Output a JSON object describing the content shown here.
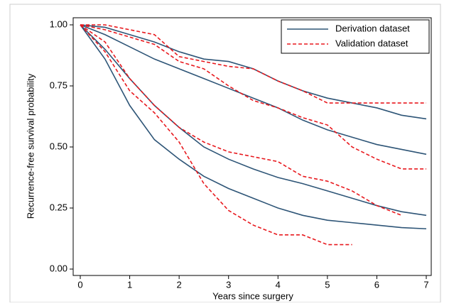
{
  "chart_data": {
    "type": "line",
    "xlabel": "Years since surgery",
    "ylabel": "Recurrence-free survival probability",
    "x": [
      0,
      0.5,
      1,
      1.5,
      2,
      2.5,
      3,
      3.5,
      4,
      4.5,
      5,
      5.5,
      6,
      6.5,
      7
    ],
    "xlim": [
      0,
      7
    ],
    "xticks": [
      0,
      1,
      2,
      3,
      4,
      5,
      6,
      7
    ],
    "ylim": [
      0,
      1
    ],
    "yticks": [
      {
        "value": 0,
        "label": "0.00"
      },
      {
        "value": 0.25,
        "label": "0.25"
      },
      {
        "value": 0.5,
        "label": "0.50"
      },
      {
        "value": 0.75,
        "label": "0.75"
      },
      {
        "value": 1,
        "label": "1.00"
      }
    ],
    "legend": "upper right",
    "series": [
      {
        "name": "Derivation dataset",
        "color": "#2e5577",
        "line_style": "solid",
        "curves": [
          [
            1,
            0.99,
            0.96,
            0.93,
            0.89,
            0.86,
            0.85,
            0.82,
            0.77,
            0.73,
            0.7,
            0.68,
            0.66,
            0.63,
            0.615
          ],
          [
            1,
            0.96,
            0.91,
            0.86,
            0.82,
            0.78,
            0.74,
            0.7,
            0.66,
            0.61,
            0.57,
            0.54,
            0.51,
            0.49,
            0.47
          ],
          [
            1,
            0.9,
            0.78,
            0.67,
            0.58,
            0.5,
            0.45,
            0.41,
            0.375,
            0.35,
            0.32,
            0.29,
            0.26,
            0.235,
            0.22
          ],
          [
            1,
            0.86,
            0.67,
            0.53,
            0.45,
            0.38,
            0.33,
            0.29,
            0.25,
            0.22,
            0.2,
            0.19,
            0.18,
            0.17,
            0.165
          ]
        ]
      },
      {
        "name": "Validation dataset",
        "color": "#e8191e",
        "line_style": "dashed",
        "curves": [
          [
            1,
            1,
            0.98,
            0.96,
            0.87,
            0.85,
            0.83,
            0.82,
            0.77,
            0.73,
            0.68,
            0.68,
            0.68,
            0.68,
            0.68
          ],
          [
            1,
            0.98,
            0.95,
            0.92,
            0.85,
            0.82,
            0.75,
            0.69,
            0.66,
            0.62,
            0.59,
            0.5,
            0.45,
            0.41,
            0.41
          ],
          [
            1,
            0.93,
            0.78,
            0.67,
            0.58,
            0.52,
            0.48,
            0.46,
            0.44,
            0.38,
            0.36,
            0.32,
            0.26,
            0.22,
            null
          ],
          [
            1,
            0.89,
            0.73,
            0.64,
            0.52,
            0.35,
            0.24,
            0.18,
            0.14,
            0.14,
            0.1,
            0.1,
            null,
            null,
            null
          ]
        ]
      }
    ]
  }
}
